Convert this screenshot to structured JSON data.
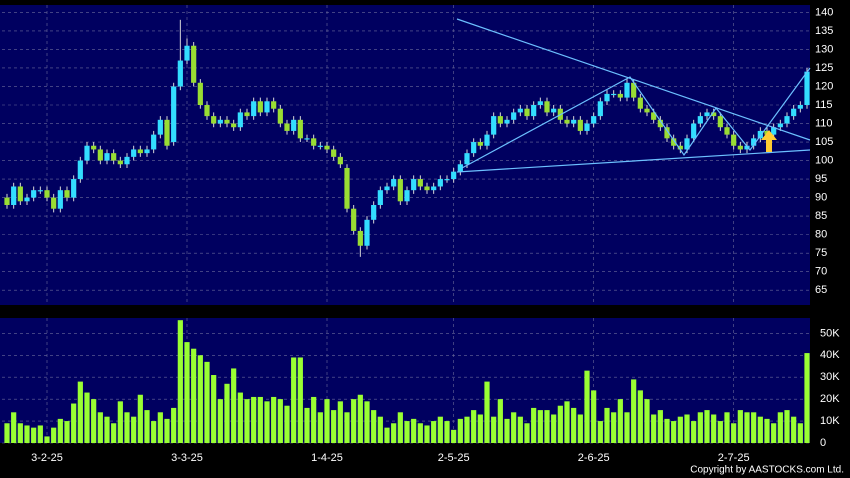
{
  "chart_data": {
    "type": "candlestick",
    "open": [
      90,
      88,
      93,
      89,
      90,
      92,
      92,
      90,
      87,
      92,
      90,
      95,
      100,
      104,
      103,
      100,
      102,
      100,
      99,
      101,
      103,
      102,
      103,
      107,
      111,
      105,
      120,
      127,
      131,
      121,
      115,
      112,
      110,
      111,
      110,
      109,
      113,
      112,
      116,
      113,
      116,
      114,
      110,
      108,
      111,
      106,
      106,
      104,
      104,
      103,
      101,
      98,
      87,
      81,
      77,
      84,
      88,
      92,
      93,
      95,
      89,
      92,
      95,
      93,
      92,
      93,
      95,
      95,
      97,
      99,
      102,
      105,
      104,
      107,
      112,
      110,
      111,
      113,
      114,
      112,
      115,
      116,
      113,
      114,
      111,
      110,
      111,
      108,
      110,
      112,
      116,
      118,
      118,
      117,
      121,
      117,
      114,
      113,
      111,
      109,
      106,
      104,
      103,
      106,
      110,
      112,
      113,
      112,
      109,
      107,
      104,
      103,
      104,
      106,
      108,
      107,
      109,
      110,
      112,
      114,
      115
    ],
    "high": [
      91,
      94,
      94,
      91,
      93,
      93,
      93,
      91,
      93,
      93,
      96,
      101,
      105,
      105,
      104,
      103,
      103,
      101,
      102,
      104,
      104,
      104,
      108,
      112,
      112,
      121,
      138,
      133,
      132,
      122,
      116,
      113,
      112,
      112,
      111,
      114,
      114,
      117,
      117,
      117,
      117,
      115,
      111,
      112,
      112,
      107,
      107,
      105,
      105,
      104,
      102,
      99,
      88,
      82,
      85,
      89,
      93,
      94,
      96,
      96,
      93,
      96,
      96,
      94,
      94,
      96,
      96,
      98,
      100,
      103,
      106,
      106,
      108,
      113,
      113,
      112,
      114,
      115,
      115,
      116,
      117,
      117,
      115,
      115,
      112,
      112,
      112,
      111,
      113,
      117,
      119,
      119,
      119,
      122,
      122,
      118,
      115,
      114,
      112,
      110,
      107,
      105,
      107,
      111,
      113,
      114,
      114,
      113,
      110,
      108,
      105,
      105,
      107,
      109,
      109,
      110,
      111,
      113,
      115,
      116,
      125
    ],
    "low": [
      87,
      87,
      88,
      88,
      89,
      91,
      89,
      86,
      86,
      89,
      89,
      94,
      99,
      102,
      99,
      99,
      99,
      98,
      98,
      100,
      101,
      101,
      102,
      106,
      103,
      104,
      119,
      126,
      120,
      114,
      111,
      109,
      109,
      109,
      108,
      108,
      111,
      111,
      112,
      112,
      113,
      109,
      107,
      107,
      105,
      105,
      103,
      103,
      102,
      100,
      98,
      86,
      80,
      74,
      76,
      83,
      87,
      91,
      92,
      88,
      88,
      91,
      92,
      91,
      91,
      92,
      94,
      94,
      96,
      98,
      101,
      103,
      103,
      106,
      109,
      109,
      110,
      112,
      111,
      111,
      114,
      112,
      112,
      110,
      109,
      109,
      107,
      107,
      109,
      111,
      115,
      117,
      116,
      116,
      116,
      113,
      112,
      110,
      108,
      105,
      103,
      102,
      102,
      105,
      109,
      111,
      111,
      108,
      106,
      103,
      102,
      102,
      103,
      105,
      106,
      106,
      108,
      109,
      111,
      113,
      114
    ],
    "close": [
      88,
      93,
      89,
      90,
      92,
      92,
      90,
      87,
      92,
      90,
      95,
      100,
      104,
      103,
      100,
      102,
      100,
      99,
      101,
      103,
      102,
      103,
      107,
      111,
      104,
      120,
      127,
      131,
      121,
      115,
      112,
      110,
      111,
      110,
      109,
      113,
      112,
      116,
      113,
      116,
      114,
      110,
      108,
      111,
      106,
      106,
      104,
      104,
      103,
      101,
      99,
      87,
      81,
      77,
      84,
      88,
      92,
      93,
      95,
      89,
      92,
      95,
      93,
      92,
      93,
      95,
      95,
      97,
      99,
      102,
      105,
      104,
      107,
      112,
      110,
      111,
      113,
      114,
      112,
      115,
      116,
      113,
      114,
      111,
      110,
      111,
      108,
      110,
      112,
      116,
      118,
      118,
      117,
      121,
      117,
      114,
      113,
      111,
      109,
      106,
      104,
      103,
      106,
      110,
      112,
      113,
      112,
      109,
      107,
      104,
      103,
      104,
      106,
      108,
      107,
      109,
      110,
      112,
      114,
      115,
      124
    ],
    "volume": [
      9000,
      14000,
      9000,
      8000,
      7000,
      8000,
      3000,
      7000,
      11000,
      10000,
      18000,
      28000,
      23000,
      20000,
      14000,
      12000,
      9000,
      19000,
      14000,
      12000,
      22000,
      15000,
      10000,
      14000,
      11000,
      16000,
      56000,
      46000,
      43000,
      40000,
      37000,
      31000,
      20000,
      27000,
      34000,
      23000,
      20000,
      21000,
      21000,
      19000,
      21000,
      20000,
      17000,
      39000,
      39000,
      16000,
      21000,
      14000,
      20000,
      15000,
      19000,
      14000,
      20000,
      22000,
      19000,
      15000,
      12000,
      7000,
      9000,
      14000,
      10000,
      11000,
      9000,
      8000,
      10000,
      12000,
      10000,
      6000,
      11000,
      12000,
      15000,
      13000,
      28000,
      12000,
      20000,
      11000,
      14000,
      12000,
      9000,
      16000,
      15000,
      15000,
      13000,
      17000,
      19000,
      16000,
      13000,
      33000,
      24000,
      10000,
      16000,
      14000,
      20000,
      14000,
      29000,
      24000,
      20000,
      13000,
      15000,
      11000,
      10000,
      12000,
      13000,
      10000,
      14000,
      15000,
      13000,
      10000,
      14000,
      9000,
      15000,
      14000,
      14000,
      12000,
      11000,
      9000,
      14000,
      15000,
      12000,
      9000,
      41000
    ],
    "up_color": "#33ddff",
    "down_color": "#99dd33",
    "volume_color": "#99ff33",
    "ylim": [
      61,
      142
    ],
    "yticks": [
      65,
      70,
      75,
      80,
      85,
      90,
      95,
      100,
      105,
      110,
      115,
      120,
      125,
      130,
      135,
      140
    ],
    "y2lim": [
      0,
      57000
    ],
    "y2ticks": [
      0,
      {
        "value": 10000,
        "label": "10K"
      },
      {
        "value": 20000,
        "label": "20K"
      },
      {
        "value": 30000,
        "label": "30K"
      },
      {
        "value": 40000,
        "label": "40K"
      },
      {
        "value": 50000,
        "label": "50K"
      }
    ],
    "xticks": [
      {
        "value": 6,
        "label": "3-2-25"
      },
      {
        "value": 27,
        "label": "3-3-25"
      },
      {
        "value": 48,
        "label": "1-4-25"
      },
      {
        "value": 67,
        "label": "2-5-25"
      },
      {
        "value": 88,
        "label": "2-6-25"
      },
      {
        "value": 109,
        "label": "2-7-25"
      }
    ],
    "grid": true,
    "copyright": "Copyright by AASTOCKS.com Ltd."
  }
}
